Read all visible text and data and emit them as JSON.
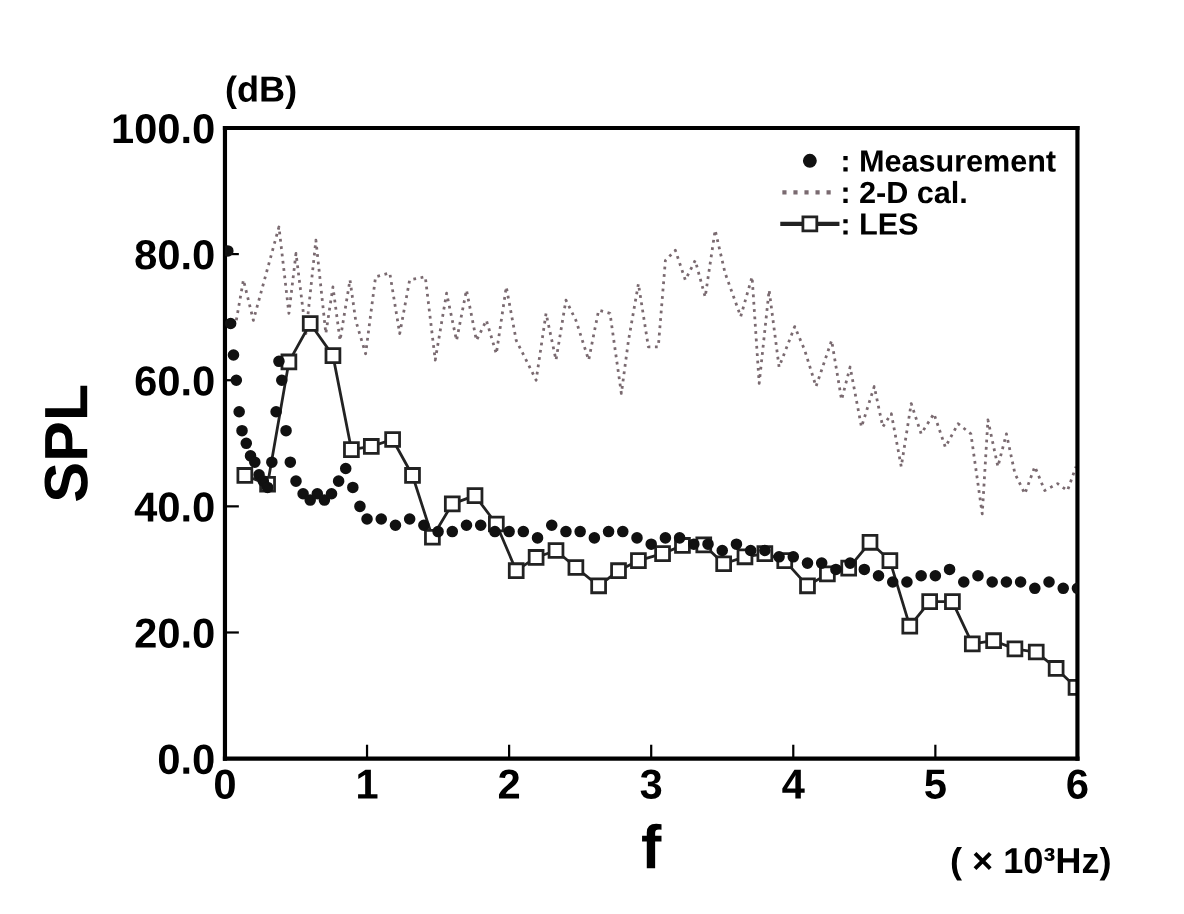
{
  "chart_data": {
    "type": "line",
    "xlabel": "f",
    "ylabel": "SPL",
    "annotations": [
      "(dB)",
      "( × 10³Hz)"
    ],
    "xlim": [
      0,
      6
    ],
    "xticks": [
      0,
      1,
      2,
      3,
      4,
      5,
      6
    ],
    "ylim": [
      0,
      100
    ],
    "yticks": [
      {
        "value": 0,
        "label": "0.0"
      },
      {
        "value": 20,
        "label": "20.0"
      },
      {
        "value": 40,
        "label": "40.0"
      },
      {
        "value": 60,
        "label": "60.0"
      },
      {
        "value": 80,
        "label": "80.0"
      },
      {
        "value": 100,
        "label": "100.0"
      }
    ],
    "grid": false,
    "legend": "top right",
    "series": [
      {
        "name": ": Measurement",
        "type": "scatter",
        "marker": "circle",
        "color": "#111111",
        "x": [
          0.02,
          0.04,
          0.06,
          0.08,
          0.1,
          0.12,
          0.15,
          0.18,
          0.21,
          0.24,
          0.27,
          0.3,
          0.33,
          0.36,
          0.38,
          0.4,
          0.43,
          0.46,
          0.5,
          0.55,
          0.6,
          0.65,
          0.7,
          0.75,
          0.8,
          0.85,
          0.9,
          0.95,
          1.0,
          1.1,
          1.2,
          1.3,
          1.4,
          1.5,
          1.6,
          1.7,
          1.8,
          1.9,
          2.0,
          2.1,
          2.2,
          2.3,
          2.4,
          2.5,
          2.6,
          2.7,
          2.8,
          2.9,
          3.0,
          3.1,
          3.2,
          3.3,
          3.4,
          3.5,
          3.6,
          3.7,
          3.8,
          3.9,
          4.0,
          4.1,
          4.2,
          4.3,
          4.4,
          4.5,
          4.6,
          4.7,
          4.8,
          4.9,
          5.0,
          5.1,
          5.2,
          5.3,
          5.4,
          5.5,
          5.6,
          5.7,
          5.8,
          5.9,
          6.0
        ],
        "values": [
          80.5,
          69,
          64,
          60,
          55,
          52,
          50,
          48,
          47,
          45,
          44,
          43,
          47,
          55,
          63,
          60,
          52,
          47,
          44,
          42,
          41,
          42,
          41,
          42,
          44,
          46,
          43,
          40,
          38,
          38,
          37,
          38,
          37,
          36,
          36,
          37,
          37,
          36,
          36,
          36,
          35,
          37,
          36,
          36,
          35,
          36,
          36,
          35,
          34,
          35,
          35,
          34,
          34,
          33,
          34,
          33,
          33,
          32,
          32,
          31,
          31,
          30,
          31,
          30,
          29,
          28,
          28,
          29,
          29,
          30,
          28,
          29,
          28,
          28,
          28,
          27,
          28,
          27,
          27
        ]
      },
      {
        "name": ": 2-D cal.",
        "marker": "none",
        "line_style": "dotted",
        "color": "#7a6a70",
        "x": [
          0.08,
          0.13,
          0.2,
          0.38,
          0.45,
          0.5,
          0.57,
          0.64,
          0.71,
          0.76,
          0.81,
          0.88,
          0.92,
          0.99,
          1.06,
          1.16,
          1.23,
          1.3,
          1.41,
          1.48,
          1.56,
          1.63,
          1.7,
          1.77,
          1.84,
          1.91,
          1.98,
          2.05,
          2.12,
          2.19,
          2.26,
          2.33,
          2.4,
          2.47,
          2.56,
          2.63,
          2.71,
          2.79,
          2.84,
          2.91,
          2.98,
          3.05,
          3.1,
          3.17,
          3.24,
          3.31,
          3.38,
          3.45,
          3.52,
          3.63,
          3.71,
          3.76,
          3.83,
          3.9,
          4.01,
          4.08,
          4.16,
          4.27,
          4.34,
          4.4,
          4.48,
          4.57,
          4.63,
          4.69,
          4.76,
          4.83,
          4.9,
          4.99,
          5.07,
          5.16,
          5.25,
          5.33,
          5.37,
          5.44,
          5.5,
          5.56,
          5.63,
          5.7,
          5.77,
          5.86,
          5.93,
          5.99
        ],
        "values": [
          69.5,
          75.9,
          69.5,
          84.3,
          70.6,
          80.1,
          67.4,
          82.2,
          67.4,
          74.8,
          66.3,
          75.9,
          69.5,
          64.2,
          76.4,
          77.0,
          67.4,
          75.9,
          76.4,
          63.2,
          73.8,
          66.3,
          74.3,
          66.3,
          69.5,
          64.2,
          74.8,
          66.3,
          63.2,
          60.0,
          70.6,
          63.2,
          72.7,
          69.5,
          63.2,
          71.1,
          70.6,
          57.9,
          66.3,
          75.3,
          65.3,
          65.3,
          79.0,
          80.6,
          75.9,
          79.0,
          73.2,
          83.8,
          77.0,
          70.1,
          76.4,
          59.5,
          74.3,
          62.1,
          68.5,
          64.8,
          59.0,
          66.3,
          56.9,
          62.1,
          52.6,
          59.0,
          52.6,
          54.7,
          46.3,
          56.3,
          51.5,
          54.7,
          49.4,
          53.1,
          51.5,
          38.8,
          53.7,
          46.3,
          51.5,
          45.2,
          42.0,
          46.3,
          42.5,
          43.6,
          42.5,
          46.3
        ]
      },
      {
        "name": ": LES",
        "marker": "square",
        "line_style": "solid",
        "color": "#222222",
        "x": [
          0.14,
          0.3,
          0.45,
          0.6,
          0.76,
          0.89,
          1.03,
          1.18,
          1.32,
          1.46,
          1.6,
          1.76,
          1.91,
          2.05,
          2.19,
          2.33,
          2.47,
          2.63,
          2.77,
          2.91,
          3.08,
          3.22,
          3.37,
          3.51,
          3.66,
          3.8,
          3.94,
          4.1,
          4.24,
          4.39,
          4.54,
          4.68,
          4.82,
          4.96,
          5.12,
          5.26,
          5.41,
          5.56,
          5.71,
          5.85,
          5.99
        ],
        "values": [
          44.9,
          43.5,
          62.9,
          69.0,
          63.9,
          49.0,
          49.5,
          50.6,
          44.9,
          35.1,
          40.4,
          41.7,
          37.2,
          29.8,
          31.9,
          33.0,
          30.3,
          27.4,
          29.8,
          31.4,
          32.5,
          33.8,
          33.9,
          30.9,
          32.0,
          32.5,
          31.4,
          27.4,
          29.3,
          30.2,
          34.3,
          31.4,
          21.0,
          24.9,
          24.9,
          18.2,
          18.7,
          17.4,
          16.9,
          14.3,
          11.3
        ]
      }
    ]
  }
}
